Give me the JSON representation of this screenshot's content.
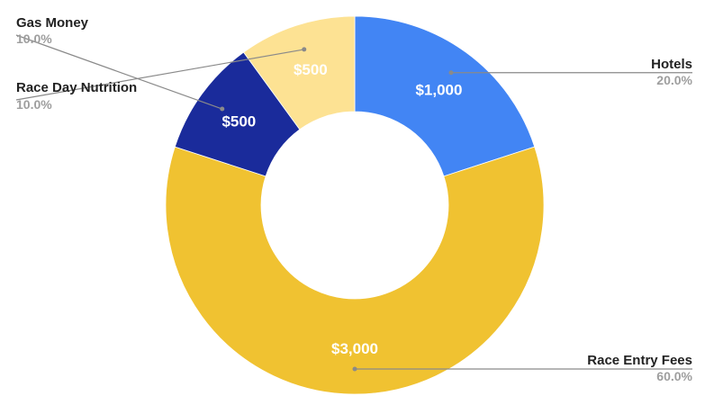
{
  "chart_data": {
    "type": "pie",
    "donut": true,
    "title": "",
    "legend": "callouts",
    "slices": [
      {
        "name": "Hotels",
        "value": 1000,
        "label": "$1,000",
        "percent": "20.0%",
        "color": "#4285f4",
        "side": "right"
      },
      {
        "name": "Race Entry Fees",
        "value": 3000,
        "label": "$3,000",
        "percent": "60.0%",
        "color": "#f0c231",
        "side": "right"
      },
      {
        "name": "Gas Money",
        "value": 500,
        "label": "$500",
        "percent": "10.0%",
        "color": "#1a2b9b",
        "side": "left"
      },
      {
        "name": "Race Day Nutrition",
        "value": 500,
        "label": "$500",
        "percent": "10.0%",
        "color": "#fde293",
        "side": "left"
      }
    ]
  }
}
